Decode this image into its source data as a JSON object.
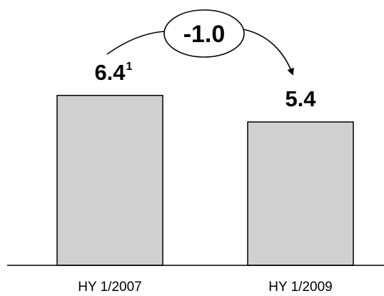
{
  "chart_data": {
    "type": "bar",
    "categories": [
      "HY 1/2007",
      "HY 1/2009"
    ],
    "values": [
      6.4,
      5.4
    ],
    "value_labels": [
      "6.4",
      "5.4"
    ],
    "footnotes": [
      "1",
      ""
    ],
    "change_label": "-1.0",
    "title": "",
    "xlabel": "",
    "ylabel": "",
    "ylim": [
      0,
      7.2
    ],
    "grid": false,
    "legend": "none",
    "bar_color": "#d0d0d0"
  }
}
